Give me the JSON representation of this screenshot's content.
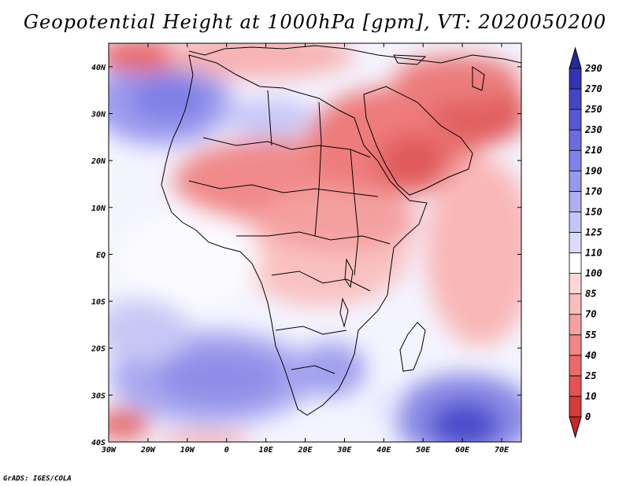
{
  "title": "Geopotential Height at 1000hPa [gpm], VT: 2020050200",
  "credit": "GrADS: IGES/COLA",
  "map": {
    "variable": "Geopotential Height",
    "level": "1000hPa",
    "units": "gpm",
    "valid_time": "2020050200",
    "lon_range": [
      -30,
      75
    ],
    "lat_range": [
      -40,
      45
    ],
    "lon_ticks": [
      "30W",
      "20W",
      "10W",
      "0",
      "10E",
      "20E",
      "30E",
      "40E",
      "50E",
      "60E",
      "70E"
    ],
    "lat_ticks": [
      "40S",
      "30S",
      "20S",
      "10S",
      "EQ",
      "10N",
      "20N",
      "30N",
      "40N"
    ]
  },
  "colorbar": {
    "levels": [
      "0",
      "10",
      "25",
      "40",
      "55",
      "70",
      "85",
      "100",
      "110",
      "125",
      "150",
      "170",
      "190",
      "210",
      "230",
      "250",
      "270",
      "290"
    ],
    "colors": [
      "#d93a3a",
      "#e65252",
      "#ee6a6a",
      "#f38585",
      "#f7a0a0",
      "#fbbcbc",
      "#fdd6d6",
      "#ffffff",
      "#dcdcfa",
      "#c4c4f6",
      "#aeaef2",
      "#9898ee",
      "#8282e8",
      "#6c6ce0",
      "#5858d6",
      "#4545c8",
      "#3333b8"
    ],
    "under_color": "#c62828",
    "over_color": "#26269e"
  },
  "colors": {
    "background": "#ffffff",
    "coast": "#000000"
  }
}
